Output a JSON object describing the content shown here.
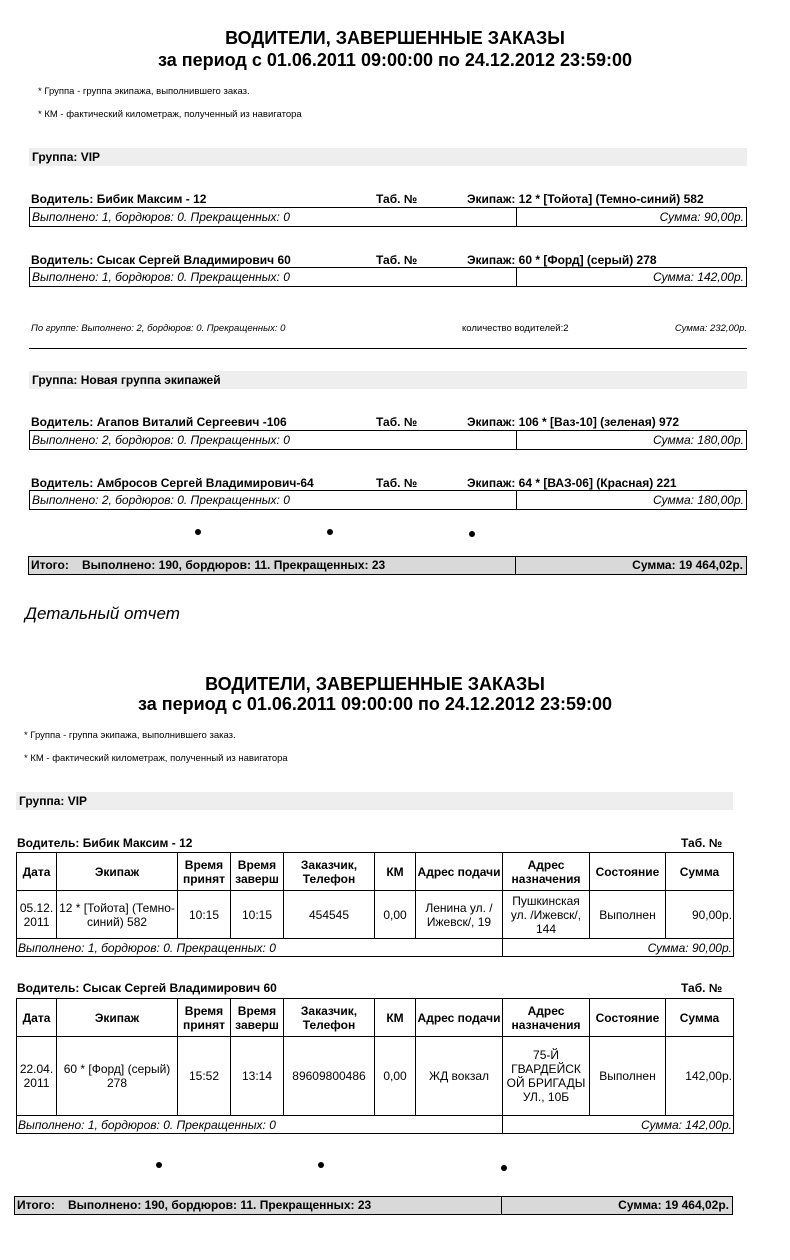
{
  "title": "ВОДИТЕЛИ, ЗАВЕРШЕННЫЕ ЗАКАЗЫ",
  "period": "за период с 01.06.2011 09:00:00 по 24.12.2012 23:59:00",
  "notes": [
    "* Группа - группа экипажа, выполнившего заказ.",
    "* КМ - фактический километраж, полученный из навигатора"
  ],
  "summary": {
    "groups": [
      {
        "label": "Группа: VIP",
        "drivers": [
          {
            "name": "Водитель: Бибик Максим - 12",
            "tab": "Таб. №",
            "crew": "Экипаж: 12 * [Тойота] (Темно-синий) 582",
            "stats": "Выполнено: 1, бордюров: 0. Прекращенных: 0",
            "sum": "Сумма: 90,00р."
          },
          {
            "name": "Водитель: Сысак Сергей Владимирович 60",
            "tab": "Таб. №",
            "crew": "Экипаж: 60 * [Форд] (серый) 278",
            "stats": "Выполнено: 1, бордюров: 0. Прекращенных: 0",
            "sum": "Сумма: 142,00р."
          }
        ],
        "footer": {
          "stats": "По группе: Выполнено: 2, бордюров: 0. Прекращенных: 0",
          "count": "количество водителей:2",
          "sum": "Сумма: 232,00р."
        }
      },
      {
        "label": "Группа: Новая группа экипажей",
        "drivers": [
          {
            "name": "Водитель: Агапов Виталий Сергеевич -106",
            "tab": "Таб. №",
            "crew": "Экипаж: 106 * [Ваз-10] (зеленая) 972",
            "stats": "Выполнено: 2, бордюров: 0. Прекращенных: 0",
            "sum": "Сумма: 180,00р."
          },
          {
            "name": "Водитель: Амбросов Сергей Владимирович-64",
            "tab": "Таб. №",
            "crew": "Экипаж: 64 * [ВАЗ-06] (Красная) 221",
            "stats": "Выполнено: 2, бордюров: 0. Прекращенных: 0",
            "sum": "Сумма: 180,00р."
          }
        ]
      }
    ],
    "total": {
      "label": "Итого:",
      "stats": "Выполнено: 190, бордюров: 11. Прекращенных: 23",
      "sum": "Сумма: 19 464,02р."
    }
  },
  "detail_caption": "Детальный отчет",
  "detail": {
    "group": "Группа: VIP",
    "columns": [
      "Дата",
      "Экипаж",
      "Время принят",
      "Время заверш",
      "Заказчик, Телефон",
      "КМ",
      "Адрес подачи",
      "Адрес назначения",
      "Состояние",
      "Сумма"
    ],
    "drivers": [
      {
        "name": "Водитель: Бибик Максим - 12",
        "tab": "Таб. №",
        "rows": [
          [
            "05.12. 2011",
            "12 * [Тойота] (Темно-синий) 582",
            "10:15",
            "10:15",
            "454545",
            "0,00",
            "Ленина ул. /Ижевск/, 19",
            "Пушкинская ул. /Ижевск/, 144",
            "Выполнен",
            "90,00р."
          ]
        ],
        "stats": "Выполнено: 1, бордюров: 0. Прекращенных: 0",
        "sum": "Сумма: 90,00р."
      },
      {
        "name": "Водитель: Сысак Сергей Владимирович 60",
        "tab": "Таб. №",
        "rows": [
          [
            "22.04. 2011",
            "60 * [Форд] (серый) 278",
            "15:52",
            "13:14",
            "89609800486",
            "0,00",
            "ЖД вокзал",
            "75-Й ГВАРДЕЙСК ОЙ БРИГАДЫ УЛ., 10Б",
            "Выполнен",
            "142,00р."
          ]
        ],
        "stats": "Выполнено: 1, бордюров: 0. Прекращенных: 0",
        "sum": "Сумма: 142,00р."
      }
    ],
    "total": {
      "label": "Итого:",
      "stats": "Выполнено: 190, бордюров: 11. Прекращенных: 23",
      "sum": "Сумма: 19 464,02р."
    }
  }
}
